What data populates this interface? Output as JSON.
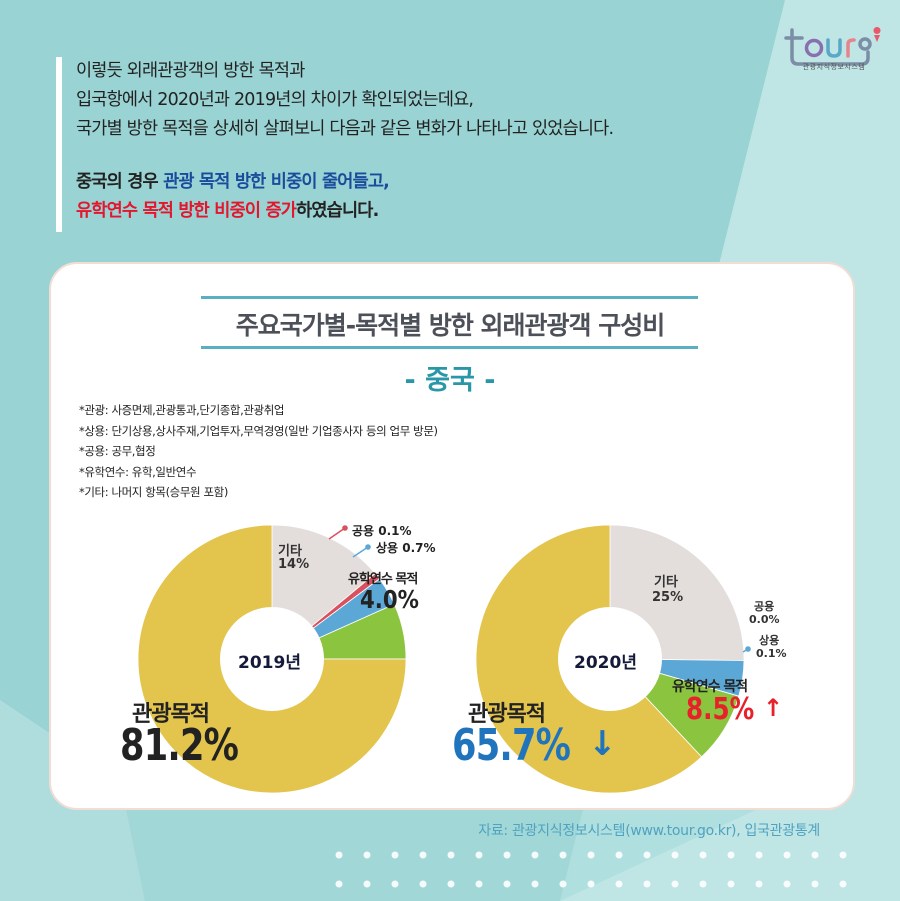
{
  "logo": {
    "text": "tour",
    "subtitle": "관광지식정보시스템",
    "pin_color": "#e8596a"
  },
  "intro": {
    "lines": [
      "이렇듯 외래관광객의 방한 목적과",
      "입국항에서 2020년과 2019년의 차이가 확인되었는데요,",
      "국가별 방한 목적을 상세히 살펴보니 다음과 같은 변화가 나타나고 있었습니다."
    ],
    "highlight_line1_a": "중국의 경우 ",
    "highlight_line1_b": "관광 목적 방한 비중이 줄어들고,",
    "highlight_line2_a": "유학연수 목적 방한 비중이 증가",
    "highlight_line2_b": "하였습니다."
  },
  "card": {
    "title": "주요국가별-목적별 방한 외래관광객 구성비",
    "subtitle": "- 중국 -",
    "notes": [
      "*관광: 사증면제,관광통과,단기종합,관광취업",
      "*상용: 단기상용,상사주재,기업투자,무역경영(일반 기업종사자 등의 업무 방문)",
      "*공용: 공무,협정",
      "*유학연수: 유학,일반연수",
      "*기타: 나머지 항목(승무원 포함)"
    ],
    "source": "자료: 관광지식정보시스템(www.tour.go.kr), 입국관광통계"
  },
  "colors": {
    "tourism": "#e3c44c",
    "other": "#e3dedb",
    "official": "#d9505e",
    "business": "#5ba7d6",
    "study": "#8bc43f",
    "accent_teal": "#2a97a8",
    "down_blue": "#1f74bd",
    "up_red": "#e8202a"
  },
  "labels": {
    "y2019": {
      "center": "2019년",
      "tourism_name": "관광목적",
      "tourism_value": "81.2%",
      "other_name": "기타",
      "other_value": "14%",
      "official": "공용 0.1%",
      "business": "상용 0.7%",
      "study_name": "유학연수 목적",
      "study_value": "4.0%"
    },
    "y2020": {
      "center": "2020년",
      "tourism_name": "관광목적",
      "tourism_value": "65.7%",
      "tourism_arrow": "↓",
      "other_name": "기타",
      "other_value": "25%",
      "official_name": "공용",
      "official_value": "0.0%",
      "business_name": "상용",
      "business_value": "0.1%",
      "study_name": "유학연수 목적",
      "study_value": "8.5%",
      "study_arrow": "↑"
    }
  },
  "chart_data": [
    {
      "type": "pie",
      "title": "2019년",
      "subtype": "donut",
      "categories": [
        "관광목적",
        "유학연수 목적",
        "상용",
        "공용",
        "기타"
      ],
      "values": [
        81.2,
        4.0,
        0.7,
        0.1,
        14.0
      ],
      "unit": "%"
    },
    {
      "type": "pie",
      "title": "2020년",
      "subtype": "donut",
      "categories": [
        "관광목적",
        "유학연수 목적",
        "상용",
        "공용",
        "기타"
      ],
      "values": [
        65.7,
        8.5,
        0.1,
        0.0,
        25.0
      ],
      "unit": "%"
    }
  ]
}
